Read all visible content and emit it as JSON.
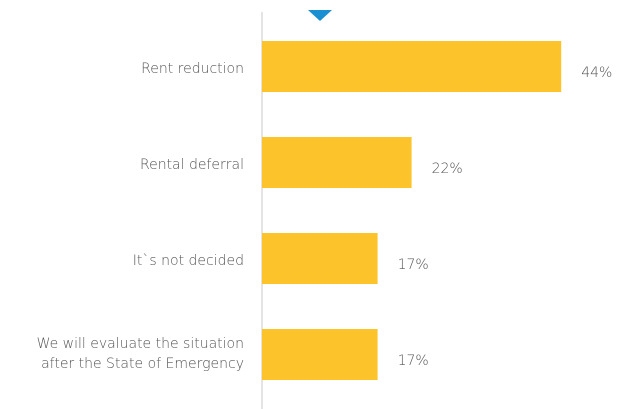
{
  "chart_data": {
    "type": "bar",
    "orientation": "horizontal",
    "categories": [
      "Rent reduction",
      "Rental deferral",
      "It`s not decided",
      "We will evaluate the situation after the State of Emergency"
    ],
    "values": [
      44,
      22,
      17,
      17
    ],
    "value_labels": [
      "44%",
      "22%",
      "17%",
      "17%"
    ],
    "color": "#fcc42a",
    "xlim": [
      0,
      45
    ]
  }
}
